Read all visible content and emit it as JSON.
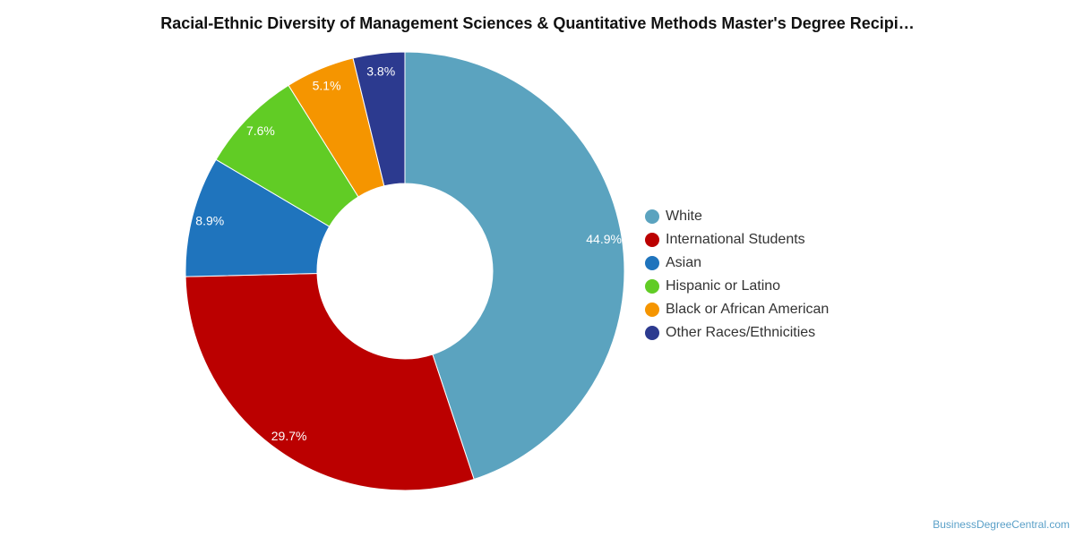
{
  "chart_title": "Racial-Ethnic Diversity of Management Sciences & Quantitative Methods Master's Degree Recipi…",
  "source_credit": "BusinessDegreeCentral.com",
  "chart_data": {
    "type": "pie",
    "variant": "donut",
    "title": "Racial-Ethnic Diversity of Management Sciences & Quantitative Methods Master's Degree Recipi…",
    "legend_position": "right",
    "slices": [
      {
        "label": "White",
        "value": 44.9,
        "display": "44.9%",
        "color": "#5ba3bf"
      },
      {
        "label": "International Students",
        "value": 29.7,
        "display": "29.7%",
        "color": "#bb0000"
      },
      {
        "label": "Asian",
        "value": 8.9,
        "display": "8.9%",
        "color": "#1f74bd"
      },
      {
        "label": "Hispanic or Latino",
        "value": 7.6,
        "display": "7.6%",
        "color": "#61cc25"
      },
      {
        "label": "Black or African American",
        "value": 5.1,
        "display": "5.1%",
        "color": "#f59500"
      },
      {
        "label": "Other Races/Ethnicities",
        "value": 3.8,
        "display": "3.8%",
        "color": "#2c3a8f"
      }
    ]
  }
}
